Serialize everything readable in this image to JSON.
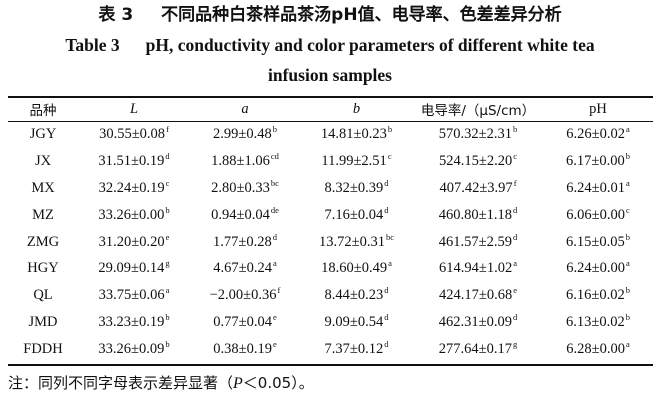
{
  "caption": {
    "cn_number": "表 3",
    "cn_title": "不同品种白茶样品茶汤pH值、电导率、色差差异分析",
    "en_number": "Table 3",
    "en_title_line1": "pH, conductivity and color parameters of different white tea",
    "en_title_line2": "infusion samples"
  },
  "table": {
    "headers": [
      "品种",
      "L",
      "a",
      "b",
      "电导率/（μS/cm）",
      "pH"
    ],
    "rows": [
      {
        "variety": "JGY",
        "L": "30.55±0.08",
        "L_sig": "f",
        "a": "2.99±0.48",
        "a_sig": "b",
        "b": "14.81±0.23",
        "b_sig": "b",
        "cond": "570.32±2.31",
        "cond_sig": "b",
        "ph": "6.26±0.02",
        "ph_sig": "a"
      },
      {
        "variety": "JX",
        "L": "31.51±0.19",
        "L_sig": "d",
        "a": "1.88±1.06",
        "a_sig": "cd",
        "b": "11.99±2.51",
        "b_sig": "c",
        "cond": "524.15±2.20",
        "cond_sig": "c",
        "ph": "6.17±0.00",
        "ph_sig": "b"
      },
      {
        "variety": "MX",
        "L": "32.24±0.19",
        "L_sig": "c",
        "a": "2.80±0.33",
        "a_sig": "bc",
        "b": "8.32±0.39",
        "b_sig": "d",
        "cond": "407.42±3.97",
        "cond_sig": "f",
        "ph": "6.24±0.01",
        "ph_sig": "a"
      },
      {
        "variety": "MZ",
        "L": "33.26±0.00",
        "L_sig": "b",
        "a": "0.94±0.04",
        "a_sig": "de",
        "b": "7.16±0.04",
        "b_sig": "d",
        "cond": "460.80±1.18",
        "cond_sig": "d",
        "ph": "6.06±0.00",
        "ph_sig": "c"
      },
      {
        "variety": "ZMG",
        "L": "31.20±0.20",
        "L_sig": "e",
        "a": "1.77±0.28",
        "a_sig": "d",
        "b": "13.72±0.31",
        "b_sig": "bc",
        "cond": "461.57±2.59",
        "cond_sig": "d",
        "ph": "6.15±0.05",
        "ph_sig": "b"
      },
      {
        "variety": "HGY",
        "L": "29.09±0.14",
        "L_sig": "g",
        "a": "4.67±0.24",
        "a_sig": "a",
        "b": "18.60±0.49",
        "b_sig": "a",
        "cond": "614.94±1.02",
        "cond_sig": "a",
        "ph": "6.24±0.00",
        "ph_sig": "a"
      },
      {
        "variety": "QL",
        "L": "33.75±0.06",
        "L_sig": "a",
        "a": "−2.00±0.36",
        "a_sig": "f",
        "b": "8.44±0.23",
        "b_sig": "d",
        "cond": "424.17±0.68",
        "cond_sig": "e",
        "ph": "6.16±0.02",
        "ph_sig": "b"
      },
      {
        "variety": "JMD",
        "L": "33.23±0.19",
        "L_sig": "b",
        "a": "0.77±0.04",
        "a_sig": "e",
        "b": "9.09±0.54",
        "b_sig": "d",
        "cond": "462.31±0.09",
        "cond_sig": "d",
        "ph": "6.13±0.02",
        "ph_sig": "b"
      },
      {
        "variety": "FDDH",
        "L": "33.26±0.09",
        "L_sig": "b",
        "a": "0.38±0.19",
        "a_sig": "e",
        "b": "7.37±0.12",
        "b_sig": "d",
        "cond": "277.64±0.17",
        "cond_sig": "g",
        "ph": "6.28±0.00",
        "ph_sig": "a"
      }
    ]
  },
  "footnote": {
    "prefix": "注：同列不同字母表示差异显著（",
    "p": "P",
    "suffix": "＜0.05）。"
  }
}
